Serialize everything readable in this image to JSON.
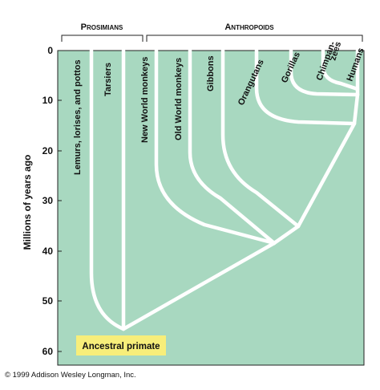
{
  "groups": {
    "prosimians": "Prosimians",
    "anthropoids": "Anthropoids"
  },
  "y_axis": {
    "label": "Millions of years ago",
    "ticks": [
      "0",
      "10",
      "20",
      "30",
      "40",
      "50",
      "60"
    ]
  },
  "taxa": [
    "Lemurs, lorises, and pottos",
    "Tarsiers",
    "New World monkeys",
    "Old World monkeys",
    "Gibbons",
    "Orangutans",
    "Gorillas",
    "Chimpanzees",
    "Humans"
  ],
  "taxa_display": {
    "lemurs": "Lemurs, lorises, and pottos",
    "tarsiers": "Tarsiers",
    "new_world": "New World monkeys",
    "old_world": "Old World monkeys",
    "gibbons": "Gibbons",
    "orangutans": "Orangutans",
    "gorillas": "Gorillas",
    "chimp_line1": "Chimpan-",
    "chimp_line2": "zees",
    "humans": "Humans"
  },
  "ancestor_label": "Ancestral primate",
  "copyright": "© 1999 Addison Wesley Longman, Inc.",
  "colors": {
    "panel": "#a8d8c0",
    "branch": "#ffffff",
    "ancestor_box": "#f7ee7a"
  }
}
